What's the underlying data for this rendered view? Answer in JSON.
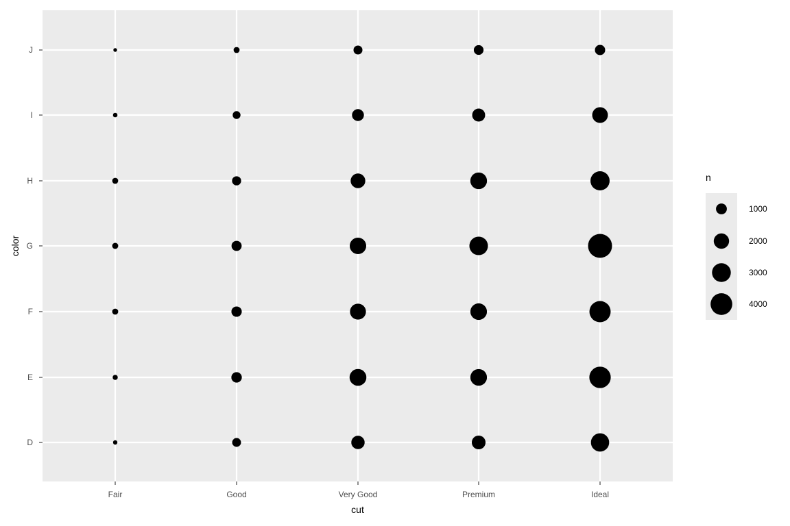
{
  "chart_data": {
    "type": "scatter",
    "title": "",
    "xlabel": "cut",
    "ylabel": "color",
    "x_categories": [
      "Fair",
      "Good",
      "Very Good",
      "Premium",
      "Ideal"
    ],
    "y_categories": [
      "D",
      "E",
      "F",
      "G",
      "H",
      "I",
      "J"
    ],
    "size_variable": "n",
    "points": [
      {
        "x": "Fair",
        "y": "D",
        "n": 163
      },
      {
        "x": "Fair",
        "y": "E",
        "n": 224
      },
      {
        "x": "Fair",
        "y": "F",
        "n": 312
      },
      {
        "x": "Fair",
        "y": "G",
        "n": 314
      },
      {
        "x": "Fair",
        "y": "H",
        "n": 303
      },
      {
        "x": "Fair",
        "y": "I",
        "n": 175
      },
      {
        "x": "Fair",
        "y": "J",
        "n": 119
      },
      {
        "x": "Good",
        "y": "D",
        "n": 662
      },
      {
        "x": "Good",
        "y": "E",
        "n": 933
      },
      {
        "x": "Good",
        "y": "F",
        "n": 909
      },
      {
        "x": "Good",
        "y": "G",
        "n": 871
      },
      {
        "x": "Good",
        "y": "H",
        "n": 702
      },
      {
        "x": "Good",
        "y": "I",
        "n": 522
      },
      {
        "x": "Good",
        "y": "J",
        "n": 307
      },
      {
        "x": "Very Good",
        "y": "D",
        "n": 1513
      },
      {
        "x": "Very Good",
        "y": "E",
        "n": 2400
      },
      {
        "x": "Very Good",
        "y": "F",
        "n": 2164
      },
      {
        "x": "Very Good",
        "y": "G",
        "n": 2299
      },
      {
        "x": "Very Good",
        "y": "H",
        "n": 1824
      },
      {
        "x": "Very Good",
        "y": "I",
        "n": 1204
      },
      {
        "x": "Very Good",
        "y": "J",
        "n": 678
      },
      {
        "x": "Premium",
        "y": "D",
        "n": 1603
      },
      {
        "x": "Premium",
        "y": "E",
        "n": 2337
      },
      {
        "x": "Premium",
        "y": "F",
        "n": 2331
      },
      {
        "x": "Premium",
        "y": "G",
        "n": 2924
      },
      {
        "x": "Premium",
        "y": "H",
        "n": 2360
      },
      {
        "x": "Premium",
        "y": "I",
        "n": 1428
      },
      {
        "x": "Premium",
        "y": "J",
        "n": 808
      },
      {
        "x": "Ideal",
        "y": "D",
        "n": 2834
      },
      {
        "x": "Ideal",
        "y": "E",
        "n": 3903
      },
      {
        "x": "Ideal",
        "y": "F",
        "n": 3826
      },
      {
        "x": "Ideal",
        "y": "G",
        "n": 4884
      },
      {
        "x": "Ideal",
        "y": "H",
        "n": 3115
      },
      {
        "x": "Ideal",
        "y": "I",
        "n": 2093
      },
      {
        "x": "Ideal",
        "y": "J",
        "n": 896
      }
    ],
    "legend": {
      "title": "n",
      "position": "right",
      "breaks": [
        1000,
        2000,
        3000,
        4000
      ],
      "labels": [
        "1000",
        "2000",
        "3000",
        "4000"
      ]
    },
    "grid": true,
    "colors": {
      "panel_background": "#ebebeb",
      "grid": "#ffffff",
      "point": "#000000",
      "tick": "#333333"
    }
  }
}
